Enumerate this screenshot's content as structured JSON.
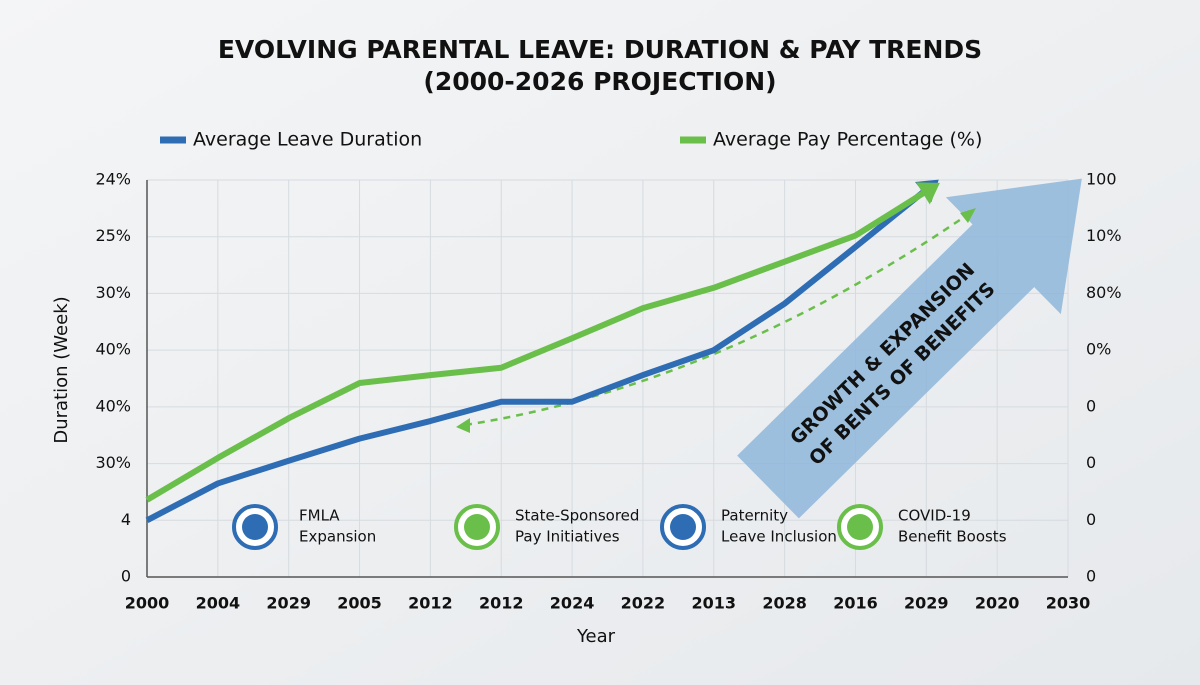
{
  "chart_data": {
    "type": "line",
    "title": [
      "EVOLVING PARENTAL LEAVE: DURATION & PAY TRENDS",
      "(2000-2026 PROJECTION)"
    ],
    "x_label": "Year",
    "y_label": "Duration (Week)",
    "categories": [
      "2000",
      "2004",
      "2029",
      "2005",
      "2012",
      "2012",
      "2024",
      "2022",
      "2013",
      "2028",
      "2016",
      "2029",
      "2020",
      "2030"
    ],
    "ylim": [
      0,
      7
    ],
    "y_labels": [
      "0",
      "4",
      "30%",
      "40%",
      "40%",
      "30%",
      "25%",
      "24%"
    ],
    "y2_labels": [
      "0",
      "0",
      "0",
      "0",
      "0%",
      "80%",
      "10%",
      "100"
    ],
    "grid": true,
    "series": [
      {
        "name": "Average Leave Duration",
        "color": "#2e6db4",
        "values": [
          1.0,
          1.65,
          2.05,
          2.44,
          2.75,
          3.09,
          3.09,
          3.56,
          4.0,
          4.82,
          5.82,
          6.83,
          null,
          null
        ]
      },
      {
        "name": "Average Pay Percentage (%)",
        "color": "#6abf4b",
        "values": [
          1.36,
          2.1,
          2.8,
          3.42,
          3.56,
          3.69,
          4.21,
          4.74,
          5.1,
          5.56,
          6.02,
          6.8,
          null,
          null
        ]
      }
    ],
    "arrow_text": [
      "GROWTH & EXPANSION",
      "OF BENTS OF BENEFITS"
    ],
    "milestones": [
      {
        "lines": [
          "FMLA",
          "Expansion"
        ],
        "color": "#2e6db4"
      },
      {
        "lines": [
          "State-Sponsored",
          "Pay Initiatives"
        ],
        "color": "#6abf4b"
      },
      {
        "lines": [
          "Paternity",
          "Leave Inclusion"
        ],
        "color": "#2e6db4"
      },
      {
        "lines": [
          "COVID-19",
          "Benefit Boosts"
        ],
        "color": "#6abf4b"
      }
    ]
  }
}
